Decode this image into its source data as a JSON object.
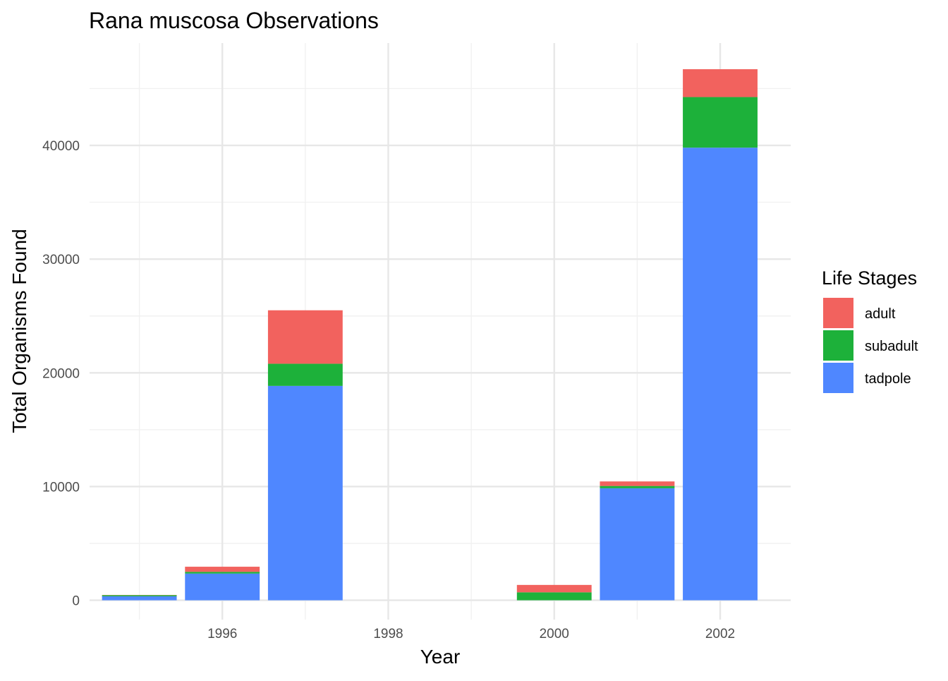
{
  "chart_data": {
    "type": "bar",
    "stacked": true,
    "title": "Rana muscosa Observations",
    "xlabel": "Year",
    "ylabel": "Total Organisms Found",
    "x": [
      1995,
      1996,
      1997,
      2000,
      2001,
      2002
    ],
    "xlim": [
      1994.4,
      2002.85
    ],
    "ylim": [
      -1700,
      49000
    ],
    "x_ticks": [
      1996,
      1998,
      2000,
      2002
    ],
    "x_tick_labels": [
      "1996",
      "1998",
      "2000",
      "2002"
    ],
    "y_ticks": [
      0,
      10000,
      20000,
      30000,
      40000
    ],
    "y_tick_labels": [
      "0",
      "10000",
      "20000",
      "30000",
      "40000"
    ],
    "grid": true,
    "legend": {
      "title": "Life Stages",
      "position": "right"
    },
    "series": [
      {
        "name": "tadpole",
        "color": "#4F87FF",
        "values": [
          350,
          2350,
          18850,
          0,
          9850,
          39800
        ]
      },
      {
        "name": "subadult",
        "color": "#1DB13A",
        "values": [
          100,
          150,
          1950,
          700,
          200,
          4450
        ]
      },
      {
        "name": "adult",
        "color": "#F2625E",
        "values": [
          20,
          450,
          4700,
          650,
          400,
          2450
        ]
      }
    ],
    "legend_order": [
      "adult",
      "subadult",
      "tadpole"
    ]
  },
  "colors": {
    "background": "#ffffff",
    "grid_major": "#e7e7e7",
    "grid_minor": "#f1f1f1",
    "text": "#000000",
    "tick_text": "#4d4d4d"
  }
}
